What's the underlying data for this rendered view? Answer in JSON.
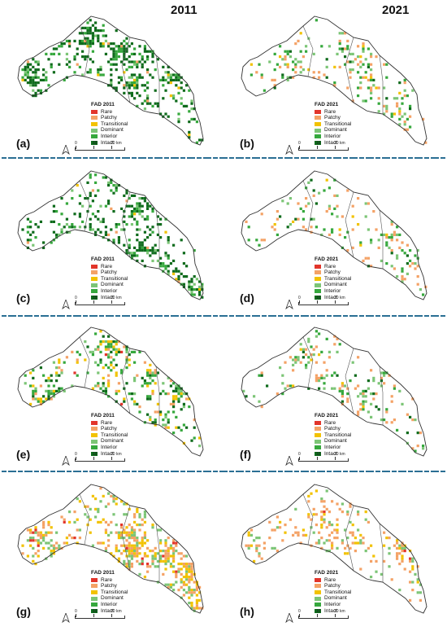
{
  "years": {
    "left": "2011",
    "right": "2021"
  },
  "legend": {
    "items": [
      "Rare",
      "Patchy",
      "Transitional",
      "Dominant",
      "Interior",
      "Intact"
    ],
    "colors": [
      "#e2352b",
      "#f4a266",
      "#f2c200",
      "#7cc576",
      "#36a83d",
      "#0e6b1c"
    ]
  },
  "scale": {
    "ticks": [
      "0",
      "10",
      "20 km"
    ]
  },
  "panels": [
    {
      "letter": "(a)",
      "legend_title": "FAD 2011",
      "style": "intact"
    },
    {
      "letter": "(b)",
      "legend_title": "FAD 2021",
      "style": "sparse"
    },
    {
      "letter": "(c)",
      "legend_title": "FAD 2011",
      "style": "intact"
    },
    {
      "letter": "(d)",
      "legend_title": "FAD 2021",
      "style": "sparse"
    },
    {
      "letter": "(e)",
      "legend_title": "FAD 2011",
      "style": "mixed"
    },
    {
      "letter": "(f)",
      "legend_title": "FAD 2021",
      "style": "sparse"
    },
    {
      "letter": "(g)",
      "legend_title": "FAD 2011",
      "style": "fragmented"
    },
    {
      "letter": "(h)",
      "legend_title": "FAD 2021",
      "style": "fragmented-sparse"
    }
  ]
}
